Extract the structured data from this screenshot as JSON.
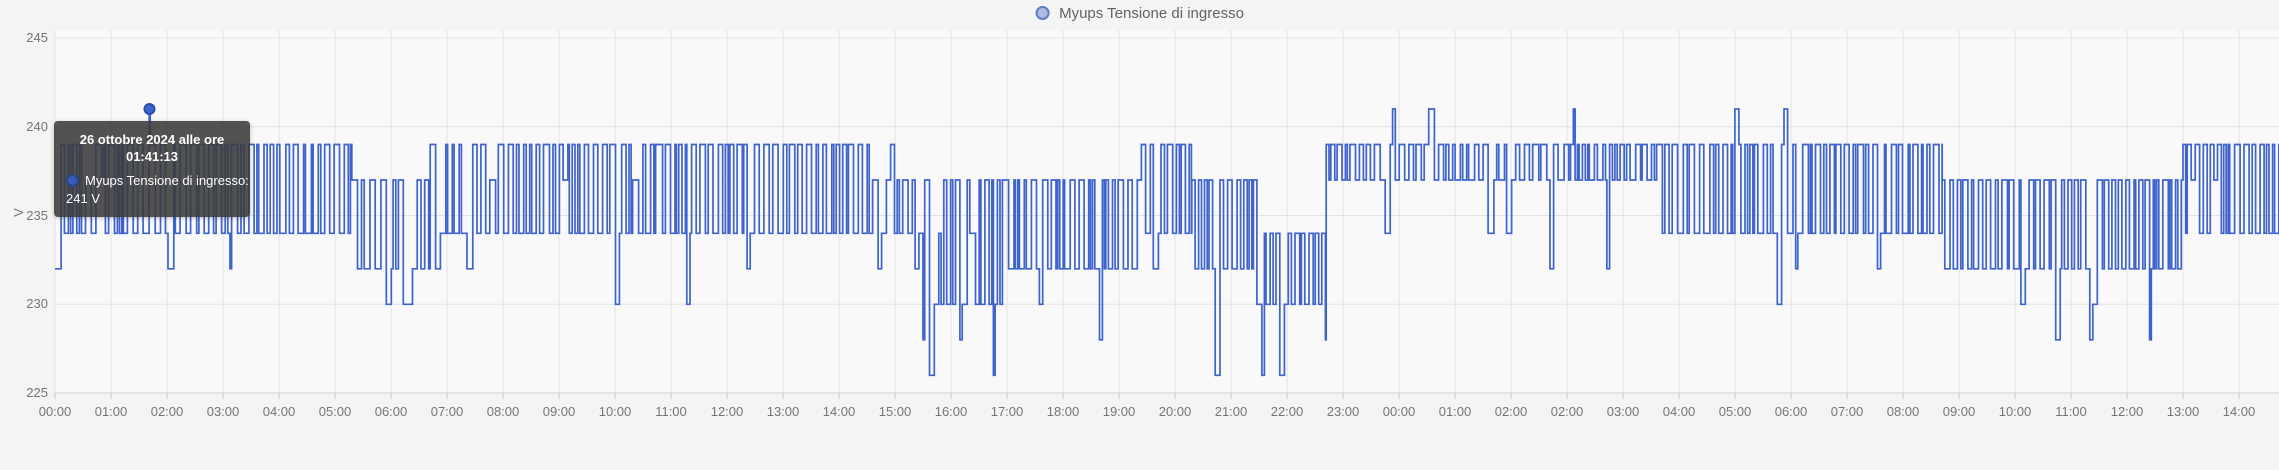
{
  "legend": {
    "label": "Myups Tensione di ingresso"
  },
  "tooltip": {
    "date_line": "26 ottobre 2024 alle ore",
    "time_line": "01:41:13",
    "series_label": "Myups Tensione di ingresso:",
    "value": "241 V"
  },
  "colors": {
    "line": "#3e63cd",
    "marker_fill": "#3e63cd",
    "marker_border": "#2b4dad",
    "grid": "#e2e2e2",
    "axis_line": "#cfcfcf",
    "tick_mark": "#c7c7c7",
    "plot_bg": "#f9f9f9",
    "page_bg": "#f4f4f4",
    "axis_text": "#757575",
    "tooltip_bg": "rgba(58,58,58,0.88)"
  },
  "chart_data": {
    "type": "line",
    "line_style": "step-after",
    "title": "",
    "xlabel": "",
    "ylabel": "V",
    "ylim": [
      225,
      245
    ],
    "y_ticks": [
      245,
      240,
      235,
      230,
      225
    ],
    "grid": true,
    "legend_position": "top-center",
    "x_axis_note": "Hourly labels from 00:00 26 Oct 2024 to 14:00 27 Oct 2024; 02:00 appears twice due to DST fall-back",
    "x_tick_labels": [
      "00:00",
      "01:00",
      "02:00",
      "03:00",
      "04:00",
      "05:00",
      "06:00",
      "07:00",
      "08:00",
      "09:00",
      "10:00",
      "11:00",
      "12:00",
      "13:00",
      "14:00",
      "15:00",
      "16:00",
      "17:00",
      "18:00",
      "19:00",
      "20:00",
      "21:00",
      "22:00",
      "23:00",
      "00:00",
      "01:00",
      "02:00",
      "02:00",
      "03:00",
      "04:00",
      "05:00",
      "06:00",
      "07:00",
      "08:00",
      "09:00",
      "10:00",
      "11:00",
      "12:00",
      "13:00",
      "14:00"
    ],
    "xlim_hours": [
      0,
      39.72
    ],
    "series": [
      {
        "name": "Myups Tensione di ingresso",
        "unit": "V",
        "color": "#3e63cd"
      }
    ],
    "observed_levels_v": [
      226,
      228,
      230,
      232,
      234,
      237,
      239,
      241
    ],
    "selected_point": {
      "elapsed_hours": 1.687,
      "value_v": 241,
      "date": "26 ottobre 2024",
      "time": "01:41:13"
    },
    "render_seed": 7,
    "segments": [
      {
        "from": 0.0,
        "to": 1.683,
        "base": 234,
        "hi": 239,
        "mid": 237,
        "p_mid": 0.1,
        "dips": [
          232
        ],
        "p_dip": 0.02,
        "dwell": [
          0.025,
          0.11
        ]
      },
      {
        "from": 1.683,
        "to": 1.7,
        "base": 241,
        "hi": 241,
        "dwell": [
          0.017,
          0.018
        ]
      },
      {
        "from": 1.7,
        "to": 5.3,
        "base": 234,
        "hi": 239,
        "mid": 237,
        "p_mid": 0.08,
        "dips": [
          232,
          230
        ],
        "p_dip": 0.03,
        "dwell": [
          0.025,
          0.11
        ]
      },
      {
        "from": 5.3,
        "to": 6.7,
        "base": 232,
        "hi": 237,
        "dips": [
          230,
          228
        ],
        "p_dip": 0.1,
        "dwell": [
          0.025,
          0.11
        ]
      },
      {
        "from": 6.7,
        "to": 10.8,
        "base": 234,
        "hi": 239,
        "mid": 237,
        "p_mid": 0.06,
        "dips": [
          232,
          230
        ],
        "p_dip": 0.05,
        "dwell": [
          0.025,
          0.11
        ]
      },
      {
        "from": 10.8,
        "to": 14.6,
        "base": 234,
        "hi": 239,
        "dips": [
          232,
          230,
          228
        ],
        "p_dip": 0.07,
        "dwell": [
          0.025,
          0.1
        ]
      },
      {
        "from": 14.6,
        "to": 15.5,
        "base": 234,
        "hi": 237,
        "peaks": [
          239
        ],
        "p_peak": 0.05,
        "dips": [
          232
        ],
        "p_dip": 0.05,
        "dwell": [
          0.025,
          0.1
        ]
      },
      {
        "from": 15.5,
        "to": 17.0,
        "base": 230,
        "hi": 237,
        "mid": 234,
        "p_mid": 0.12,
        "dips": [
          228,
          226
        ],
        "p_dip": 0.1,
        "dwell": [
          0.025,
          0.09
        ]
      },
      {
        "from": 17.0,
        "to": 19.4,
        "base": 232,
        "hi": 237,
        "dips": [
          230,
          228
        ],
        "p_dip": 0.08,
        "dwell": [
          0.025,
          0.1
        ]
      },
      {
        "from": 19.4,
        "to": 20.3,
        "base": 234,
        "hi": 239,
        "dips": [
          232
        ],
        "p_dip": 0.05,
        "dwell": [
          0.025,
          0.1
        ]
      },
      {
        "from": 20.3,
        "to": 21.4,
        "base": 232,
        "hi": 237,
        "dips": [
          230,
          228,
          226
        ],
        "p_dip": 0.12,
        "dwell": [
          0.025,
          0.09
        ]
      },
      {
        "from": 21.4,
        "to": 22.7,
        "base": 230,
        "hi": 234,
        "mid": 237,
        "p_mid": 0.07,
        "dips": [
          228,
          226
        ],
        "p_dip": 0.14,
        "dwell": [
          0.025,
          0.09
        ]
      },
      {
        "from": 22.7,
        "to": 28.6,
        "base": 237,
        "hi": 239,
        "peaks": [
          241
        ],
        "p_peak": 0.06,
        "dips": [
          234,
          232
        ],
        "p_dip": 0.06,
        "dwell": [
          0.025,
          0.11
        ]
      },
      {
        "from": 28.6,
        "to": 33.7,
        "base": 234,
        "hi": 239,
        "peaks": [
          241
        ],
        "p_peak": 0.04,
        "dips": [
          232,
          230
        ],
        "p_dip": 0.04,
        "dwell": [
          0.025,
          0.11
        ]
      },
      {
        "from": 33.7,
        "to": 38.0,
        "base": 232,
        "hi": 237,
        "dips": [
          230,
          228
        ],
        "p_dip": 0.08,
        "dwell": [
          0.025,
          0.1
        ]
      },
      {
        "from": 38.0,
        "to": 39.72,
        "base": 234,
        "hi": 239,
        "mid": 237,
        "p_mid": 0.08,
        "dips": [
          232
        ],
        "p_dip": 0.04,
        "dwell": [
          0.025,
          0.1
        ]
      }
    ]
  }
}
